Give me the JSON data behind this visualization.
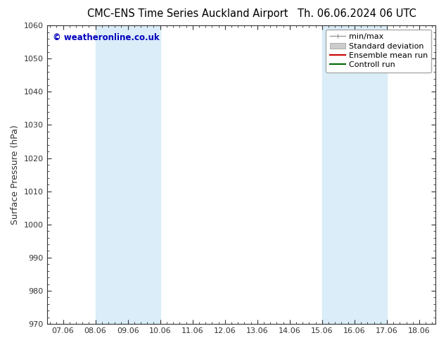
{
  "title_left": "CMC-ENS Time Series Auckland Airport",
  "title_right": "Th. 06.06.2024 06 UTC",
  "ylabel": "Surface Pressure (hPa)",
  "ylim": [
    970,
    1060
  ],
  "yticks": [
    970,
    980,
    990,
    1000,
    1010,
    1020,
    1030,
    1040,
    1050,
    1060
  ],
  "xtick_labels": [
    "07.06",
    "08.06",
    "09.06",
    "10.06",
    "11.06",
    "12.06",
    "13.06",
    "14.06",
    "15.06",
    "16.06",
    "17.06",
    "18.06"
  ],
  "xtick_positions": [
    0,
    1,
    2,
    3,
    4,
    5,
    6,
    7,
    8,
    9,
    10,
    11
  ],
  "shaded_bands": [
    {
      "xmin": 1.0,
      "xmax": 3.0,
      "color": "#daedf8"
    },
    {
      "xmin": 8.0,
      "xmax": 10.0,
      "color": "#daedf8"
    }
  ],
  "watermark": "© weatheronline.co.uk",
  "watermark_color": "#0000bb",
  "legend_labels": [
    "min/max",
    "Standard deviation",
    "Ensemble mean run",
    "Controll run"
  ],
  "legend_colors": [
    "#999999",
    "#cccccc",
    "#cc0000",
    "#006600"
  ],
  "bg_color": "#ffffff",
  "plot_bg_color": "#ffffff",
  "spine_color": "#333333",
  "tick_color": "#333333",
  "title_fontsize": 10.5,
  "label_fontsize": 9,
  "tick_fontsize": 8,
  "legend_fontsize": 8
}
